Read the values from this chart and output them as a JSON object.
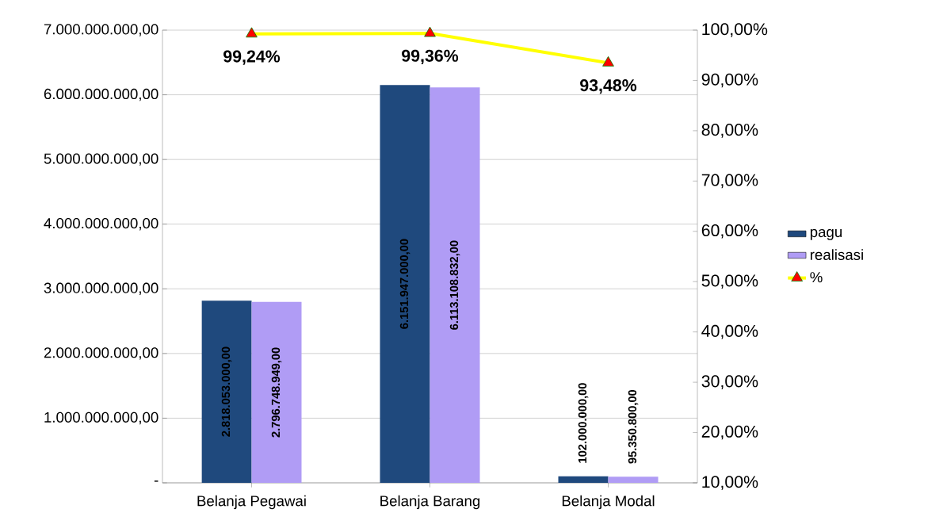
{
  "chart_data": {
    "type": "bar",
    "categories": [
      "Belanja Pegawai",
      "Belanja Barang",
      "Belanja Modal"
    ],
    "series": [
      {
        "name": "pagu",
        "color": "#1f497d",
        "values": [
          2818053000,
          6151947000,
          102000000
        ],
        "value_labels": [
          "2.818.053.000,00",
          "6.151.947.000,00",
          "102.000.000,00"
        ]
      },
      {
        "name": "realisasi",
        "color": "#b09cf5",
        "values": [
          2796748949,
          6113108832,
          95350800
        ],
        "value_labels": [
          "2.796.748.949,00",
          "6.113.108.832,00",
          "95.350.800,00"
        ]
      },
      {
        "name": "%",
        "type": "line",
        "axis": "y2",
        "color": "#ffff00",
        "marker": "triangle",
        "values": [
          99.24,
          99.36,
          93.48
        ],
        "value_labels": [
          "99,24%",
          "99,36%",
          "93,48%"
        ]
      }
    ],
    "ylim": [
      0,
      7000000000
    ],
    "yticks": [
      {
        "value": 0,
        "label": "-"
      },
      {
        "value": 1000000000,
        "label": "1.000.000.000,00"
      },
      {
        "value": 2000000000,
        "label": "2.000.000.000,00"
      },
      {
        "value": 3000000000,
        "label": "3.000.000.000,00"
      },
      {
        "value": 4000000000,
        "label": "4.000.000.000,00"
      },
      {
        "value": 5000000000,
        "label": "5.000.000.000,00"
      },
      {
        "value": 6000000000,
        "label": "6.000.000.000,00"
      },
      {
        "value": 7000000000,
        "label": "7.000.000.000,00"
      }
    ],
    "y2lim": [
      10,
      100
    ],
    "y2ticks": [
      {
        "value": 10,
        "label": "10,00%"
      },
      {
        "value": 20,
        "label": "20,00%"
      },
      {
        "value": 30,
        "label": "30,00%"
      },
      {
        "value": 40,
        "label": "40,00%"
      },
      {
        "value": 50,
        "label": "50,00%"
      },
      {
        "value": 60,
        "label": "60,00%"
      },
      {
        "value": 70,
        "label": "70,00%"
      },
      {
        "value": 80,
        "label": "80,00%"
      },
      {
        "value": 90,
        "label": "90,00%"
      },
      {
        "value": 100,
        "label": "100,00%"
      }
    ],
    "grid": "y",
    "legend": "right"
  }
}
